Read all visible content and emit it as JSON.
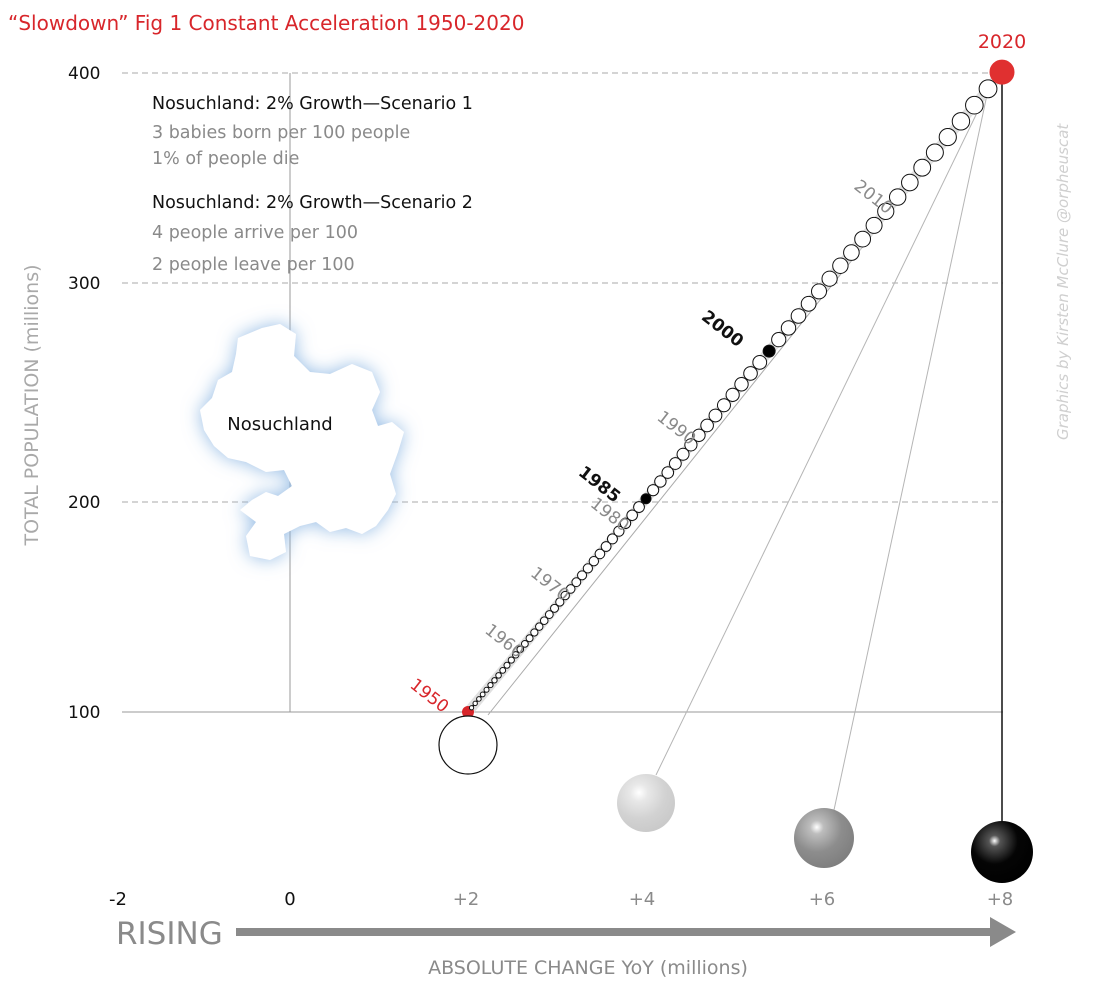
{
  "title": "“Slowdown” Fig 1 Constant Acceleration 1950-2020",
  "credit": "Graphics by Kirsten McClure @orpheuscat",
  "country_label": "Nosuchland",
  "notes": {
    "scenario1": {
      "head": "Nosuchland: 2% Growth—Scenario 1",
      "lines": [
        "3 babies born per 100 people",
        "1% of people die"
      ]
    },
    "scenario2": {
      "head": "Nosuchland: 2% Growth—Scenario 2",
      "lines": [
        "4 people arrive per 100",
        "2 people leave per 100"
      ]
    }
  },
  "colors": {
    "accent": "#d8262b",
    "text": "#111111",
    "muted": "#8a8a8a",
    "grid": "#aaaaaa",
    "map_glow": "#a9c9ea"
  },
  "chart_data": {
    "type": "scatter",
    "title": "“Slowdown” Fig 1 Constant Acceleration 1950-2020",
    "xlabel": "ABSOLUTE CHANGE YoY (millions)",
    "xlabel_prefix": "RISING",
    "ylabel": "TOTAL POPULATION (millions)",
    "xlim": [
      -2,
      8
    ],
    "ylim": [
      100,
      400
    ],
    "x_ticks": [
      "-2",
      "0",
      "+2",
      "+4",
      "+6",
      "+8"
    ],
    "y_ticks": [
      "100",
      "200",
      "300",
      "400"
    ],
    "grid": "horizontal dashed at 200, 300, 400",
    "growth_rate_percent": 2,
    "start": {
      "year": 1950,
      "population": 100,
      "change": 2
    },
    "end": {
      "year": 2020,
      "population": 400,
      "change": 8
    },
    "years": [
      1950,
      1951,
      1952,
      1953,
      1954,
      1955,
      1956,
      1957,
      1958,
      1959,
      1960,
      1961,
      1962,
      1963,
      1964,
      1965,
      1966,
      1967,
      1968,
      1969,
      1970,
      1971,
      1972,
      1973,
      1974,
      1975,
      1976,
      1977,
      1978,
      1979,
      1980,
      1981,
      1982,
      1983,
      1984,
      1985,
      1986,
      1987,
      1988,
      1989,
      1990,
      1991,
      1992,
      1993,
      1994,
      1995,
      1996,
      1997,
      1998,
      1999,
      2000,
      2001,
      2002,
      2003,
      2004,
      2005,
      2006,
      2007,
      2008,
      2009,
      2010,
      2011,
      2012,
      2013,
      2014,
      2015,
      2016,
      2017,
      2018,
      2019,
      2020
    ],
    "year_labels": [
      {
        "year": 1950,
        "text": "1950",
        "style": "red"
      },
      {
        "year": 1960,
        "text": "1960",
        "style": "gray"
      },
      {
        "year": 1970,
        "text": "1970",
        "style": "gray"
      },
      {
        "year": 1980,
        "text": "1980",
        "style": "gray"
      },
      {
        "year": 1985,
        "text": "1985",
        "style": "dark"
      },
      {
        "year": 1990,
        "text": "1990",
        "style": "gray"
      },
      {
        "year": 2000,
        "text": "2000",
        "style": "dark"
      },
      {
        "year": 2010,
        "text": "2010",
        "style": "gray"
      },
      {
        "year": 2020,
        "text": "2020",
        "style": "red"
      }
    ],
    "highlighted_years": [
      1985,
      2000
    ],
    "balls": [
      {
        "x": 2,
        "style": "hollow"
      },
      {
        "x": 4,
        "style": "light-gray"
      },
      {
        "x": 6,
        "style": "gray"
      },
      {
        "x": 8,
        "style": "black"
      }
    ]
  }
}
